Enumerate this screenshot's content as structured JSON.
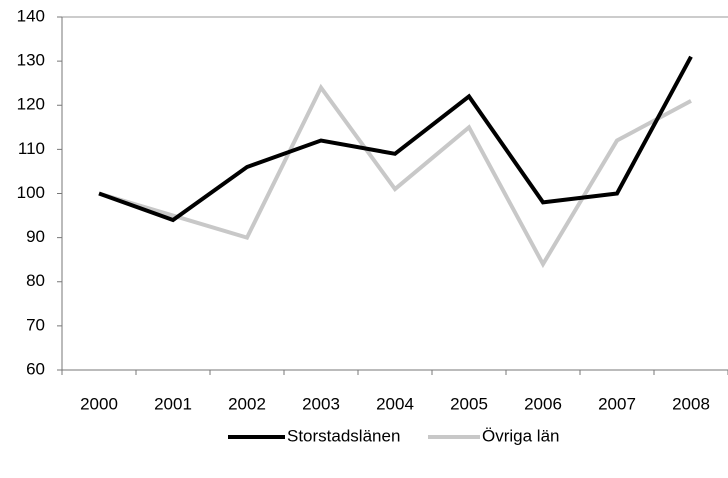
{
  "chart_data": {
    "type": "line",
    "categories": [
      "2000",
      "2001",
      "2002",
      "2003",
      "2004",
      "2005",
      "2006",
      "2007",
      "2008"
    ],
    "series": [
      {
        "name": "Storstadslänen",
        "color": "#000000",
        "values": [
          100,
          94,
          106,
          112,
          109,
          122,
          98,
          100,
          131
        ]
      },
      {
        "name": "Övriga län",
        "color": "#c8c8c8",
        "values": [
          100,
          95,
          90,
          124,
          101,
          115,
          84,
          112,
          121
        ]
      }
    ],
    "ylim": [
      60,
      140
    ],
    "yticks": [
      60,
      70,
      80,
      90,
      100,
      110,
      120,
      130,
      140
    ],
    "grid": false,
    "legend": "bottom"
  }
}
